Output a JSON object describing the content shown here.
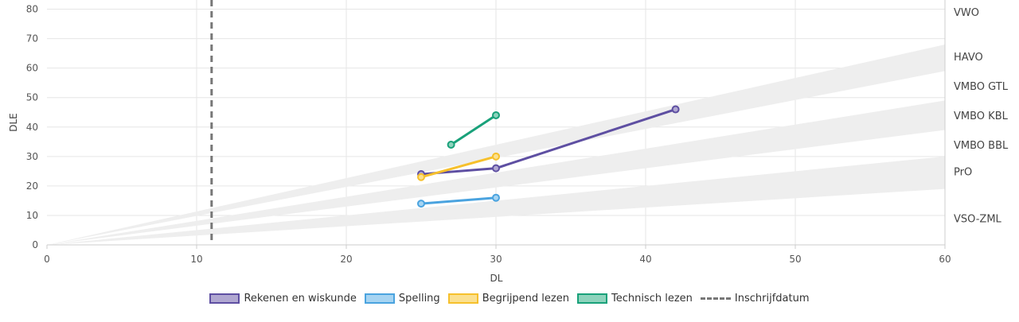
{
  "chart_data": {
    "type": "line",
    "xlabel": "DL",
    "ylabel": "DLE",
    "xlim": [
      0,
      60
    ],
    "ylim": [
      0,
      85
    ],
    "x_ticks": [
      "0",
      "10",
      "20",
      "30",
      "40",
      "50",
      "60"
    ],
    "y_ticks": [
      "0",
      "10",
      "20",
      "30",
      "40",
      "50",
      "60",
      "70",
      "80"
    ],
    "grid": true,
    "legend_position": "bottom",
    "level_labels": [
      {
        "label": "VWO",
        "y": 79
      },
      {
        "label": "HAVO",
        "y": 64
      },
      {
        "label": "VMBO GTL",
        "y": 54
      },
      {
        "label": "VMBO KBL",
        "y": 44
      },
      {
        "label": "VMBO BBL",
        "y": 34
      },
      {
        "label": "PrO",
        "y": 25
      },
      {
        "label": "VSO-ZML",
        "y": 9
      }
    ],
    "bands": [
      {
        "upper_at_60": 68,
        "lower_at_60": 59
      },
      {
        "upper_at_60": 49,
        "lower_at_60": 39
      },
      {
        "upper_at_60": 30,
        "lower_at_60": 19
      }
    ],
    "band_color": "#eeeeee",
    "series": [
      {
        "name": "Rekenen en wiskunde",
        "color": "#5e4fa2",
        "fill": "#b0a7d1",
        "points": [
          [
            25,
            24
          ],
          [
            30,
            26
          ],
          [
            42,
            46
          ]
        ]
      },
      {
        "name": "Spelling",
        "color": "#4aa3df",
        "fill": "#a6d4f2",
        "points": [
          [
            25,
            14
          ],
          [
            30,
            16
          ]
        ]
      },
      {
        "name": "Begrijpend lezen",
        "color": "#f6c02c",
        "fill": "#fbe08f",
        "points": [
          [
            25,
            23
          ],
          [
            30,
            30
          ]
        ]
      },
      {
        "name": "Technisch lezen",
        "color": "#19a17a",
        "fill": "#8dd3bc",
        "points": [
          [
            27,
            34
          ],
          [
            30,
            44
          ]
        ]
      }
    ],
    "reference_line": {
      "name": "Inschrijfdatum",
      "x": 11,
      "color": "#777777"
    }
  }
}
